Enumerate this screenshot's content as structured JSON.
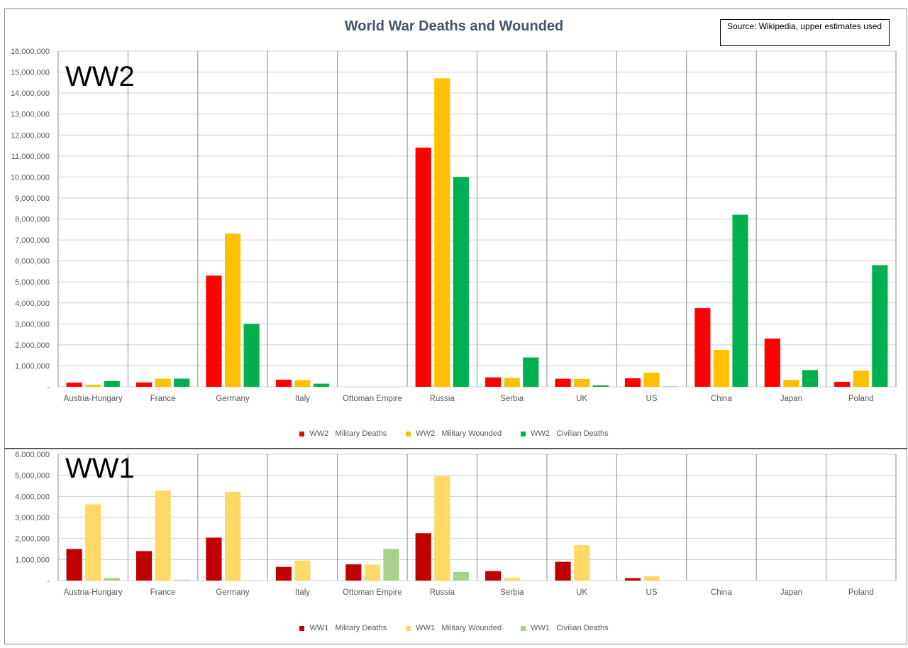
{
  "header": {
    "title": "World War Deaths and Wounded",
    "source_note": "Source: Wikipedia, upper estimates used"
  },
  "chart_data": [
    {
      "panel": "WW2",
      "type": "bar",
      "label": "WW2",
      "categories": [
        "Austria-Hungary",
        "France",
        "Germany",
        "Italy",
        "Ottoman Empire",
        "Russia",
        "Serbia",
        "UK",
        "US",
        "China",
        "Japan",
        "Poland"
      ],
      "ylim": [
        0,
        16000000
      ],
      "ytick_step": 1000000,
      "y_ticks": [
        "-",
        "1,000,000",
        "2,000,000",
        "3,000,000",
        "4,000,000",
        "5,000,000",
        "6,000,000",
        "7,000,000",
        "8,000,000",
        "9,000,000",
        "10,000,000",
        "11,000,000",
        "12,000,000",
        "13,000,000",
        "14,000,000",
        "15,000,000",
        "16,000,000"
      ],
      "grid": true,
      "legend_position": "bottom",
      "series": [
        {
          "name": "WW2   Military Deaths",
          "color": "#ff0000",
          "values": [
            200000,
            210000,
            5300000,
            340000,
            0,
            11400000,
            450000,
            384000,
            407000,
            3750000,
            2300000,
            240000
          ]
        },
        {
          "name": "WW2   Military Wounded",
          "color": "#ffc000",
          "values": [
            90000,
            390000,
            7300000,
            320000,
            0,
            14700000,
            420000,
            376000,
            670000,
            1760000,
            330000,
            770000
          ]
        },
        {
          "name": "WW2   Civilian Deaths",
          "color": "#00b050",
          "values": [
            270000,
            390000,
            3000000,
            150000,
            0,
            10000000,
            1400000,
            67000,
            12000,
            8200000,
            800000,
            5800000
          ]
        }
      ]
    },
    {
      "panel": "WW1",
      "type": "bar",
      "label": "WW1",
      "categories": [
        "Austria-Hungary",
        "France",
        "Germany",
        "Italy",
        "Ottoman Empire",
        "Russia",
        "Serbia",
        "UK",
        "US",
        "China",
        "Japan",
        "Poland"
      ],
      "ylim": [
        0,
        6000000
      ],
      "ytick_step": 1000000,
      "y_ticks": [
        "-",
        "1,000,000",
        "2,000,000",
        "3,000,000",
        "4,000,000",
        "5,000,000",
        "6,000,000"
      ],
      "grid": true,
      "legend_position": "bottom",
      "series": [
        {
          "name": "WW1   Military Deaths",
          "color": "#c00000",
          "values": [
            1500000,
            1400000,
            2040000,
            650000,
            770000,
            2250000,
            450000,
            890000,
            117000,
            0,
            0,
            0
          ]
        },
        {
          "name": "WW1   Military Wounded",
          "color": "#ffd966",
          "values": [
            3620000,
            4270000,
            4220000,
            950000,
            760000,
            4950000,
            130000,
            1680000,
            205000,
            0,
            0,
            0
          ]
        },
        {
          "name": "WW1   Civilian Deaths",
          "color": "#a9d18e",
          "values": [
            120000,
            40000,
            10000,
            10000,
            1500000,
            410000,
            10000,
            10000,
            1000,
            0,
            0,
            0
          ]
        }
      ]
    }
  ]
}
